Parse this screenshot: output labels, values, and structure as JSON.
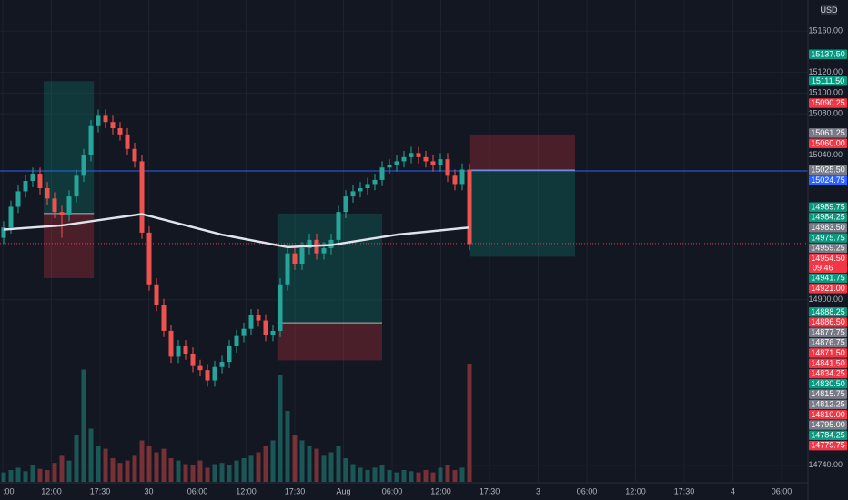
{
  "chart_data": {
    "type": "candlestick",
    "currency": "USD",
    "ylim": [
      14724,
      15190
    ],
    "yticks": [
      {
        "value": 15160,
        "label": "15160.00"
      },
      {
        "value": 15120,
        "label": "15120.00"
      },
      {
        "value": 15100,
        "label": "15100.00"
      },
      {
        "value": 15080,
        "label": "15080.00"
      },
      {
        "value": 15040,
        "label": "15040.00"
      },
      {
        "value": 14900,
        "label": "14900.00"
      },
      {
        "value": 14740,
        "label": "14740.00"
      }
    ],
    "time_labels": [
      ":00",
      "12:00",
      "17:30",
      "30",
      "06:00",
      "12:00",
      "17:30",
      "Aug",
      "06:00",
      "12:00",
      "17:30",
      "3",
      "06:00",
      "12:00",
      "17:30",
      "4",
      "06:00"
    ],
    "up_color": "#26a69a",
    "down_color": "#ef5350",
    "ohlc": [
      [
        14960,
        14976,
        14954,
        14970
      ],
      [
        14970,
        14996,
        14964,
        14990
      ],
      [
        14990,
        15011,
        14984,
        15005
      ],
      [
        15005,
        15021,
        14999,
        15015
      ],
      [
        15015,
        15028,
        15009,
        15022
      ],
      [
        15022,
        15028,
        15002,
        15008
      ],
      [
        15008,
        15014,
        14992,
        14998
      ],
      [
        14998,
        15004,
        14979,
        14985
      ],
      [
        14985,
        14991,
        14960,
        14982
      ],
      [
        14982,
        15006,
        14976,
        15000
      ],
      [
        15000,
        15026,
        14994,
        15020
      ],
      [
        15020,
        15046,
        15014,
        15040
      ],
      [
        15040,
        15074,
        15034,
        15068
      ],
      [
        15068,
        15084,
        15062,
        15078
      ],
      [
        15078,
        15084,
        15066,
        15072
      ],
      [
        15072,
        15078,
        15060,
        15066
      ],
      [
        15066,
        15072,
        15054,
        15060
      ],
      [
        15060,
        15066,
        15040,
        15046
      ],
      [
        15046,
        15052,
        15028,
        15034
      ],
      [
        15034,
        15040,
        14959,
        14965
      ],
      [
        14965,
        14971,
        14909,
        14915
      ],
      [
        14915,
        14921,
        14889,
        14895
      ],
      [
        14895,
        14901,
        14864,
        14870
      ],
      [
        14870,
        14876,
        14839,
        14845
      ],
      [
        14845,
        14861,
        14839,
        14855
      ],
      [
        14855,
        14861,
        14842,
        14848
      ],
      [
        14848,
        14854,
        14830,
        14836
      ],
      [
        14836,
        14842,
        14826,
        14832
      ],
      [
        14832,
        14838,
        14816,
        14822
      ],
      [
        14822,
        14841,
        14816,
        14835
      ],
      [
        14835,
        14846,
        14829,
        14840
      ],
      [
        14840,
        14861,
        14834,
        14855
      ],
      [
        14855,
        14871,
        14849,
        14865
      ],
      [
        14865,
        14878,
        14859,
        14872
      ],
      [
        14872,
        14891,
        14866,
        14885
      ],
      [
        14885,
        14891,
        14874,
        14880
      ],
      [
        14880,
        14886,
        14860,
        14866
      ],
      [
        14866,
        14876,
        14860,
        14870
      ],
      [
        14870,
        14921,
        14864,
        14915
      ],
      [
        14915,
        14951,
        14909,
        14945
      ],
      [
        14945,
        14951,
        14929,
        14935
      ],
      [
        14935,
        14956,
        14929,
        14950
      ],
      [
        14950,
        14964,
        14944,
        14958
      ],
      [
        14958,
        14964,
        14939,
        14945
      ],
      [
        14945,
        14956,
        14939,
        14950
      ],
      [
        14950,
        14964,
        14944,
        14958
      ],
      [
        14958,
        14991,
        14952,
        14985
      ],
      [
        14985,
        15006,
        14979,
        15000
      ],
      [
        15000,
        15011,
        14994,
        15005
      ],
      [
        15005,
        15014,
        14999,
        15008
      ],
      [
        15008,
        15018,
        15002,
        15012
      ],
      [
        15012,
        15022,
        15006,
        15016
      ],
      [
        15016,
        15034,
        15010,
        15028
      ],
      [
        15028,
        15036,
        15022,
        15030
      ],
      [
        15030,
        15040,
        15024,
        15034
      ],
      [
        15034,
        15044,
        15028,
        15038
      ],
      [
        15038,
        15048,
        15032,
        15042
      ],
      [
        15042,
        15048,
        15032,
        15038
      ],
      [
        15038,
        15044,
        15028,
        15034
      ],
      [
        15034,
        15040,
        15024,
        15030
      ],
      [
        15030,
        15042,
        15024,
        15036
      ],
      [
        15036,
        15042,
        15014,
        15020
      ],
      [
        15020,
        15026,
        15006,
        15012
      ],
      [
        15012,
        15032,
        15006,
        15026
      ],
      [
        15026,
        15032,
        14948,
        14954
      ]
    ],
    "volume": [
      8,
      10,
      12,
      9,
      14,
      11,
      10,
      16,
      22,
      18,
      40,
      95,
      45,
      30,
      28,
      20,
      16,
      18,
      22,
      35,
      30,
      25,
      28,
      20,
      18,
      15,
      14,
      18,
      12,
      15,
      16,
      14,
      18,
      20,
      22,
      25,
      30,
      35,
      90,
      60,
      40,
      35,
      30,
      28,
      22,
      25,
      30,
      20,
      15,
      12,
      10,
      12,
      14,
      10,
      8,
      10,
      9,
      8,
      10,
      8,
      12,
      14,
      10,
      12,
      100
    ],
    "ma": {
      "x": [
        0,
        8,
        19,
        30,
        39,
        45,
        54,
        64
      ],
      "values": [
        14968,
        14972,
        14983,
        14963,
        14951,
        14953,
        14963,
        14970
      ],
      "color": "#e0e3eb"
    },
    "positions": [
      {
        "from": 5.5,
        "to": 12.4,
        "target": 15111.5,
        "entry": 14983.5,
        "stop": 14921
      },
      {
        "from": 37.6,
        "to": 52,
        "target": 14983.5,
        "entry": 14877.75,
        "stop": 14841.5
      },
      {
        "from": 64.1,
        "to": 78.5,
        "target": 14941.75,
        "entry": 15025.5,
        "stop": 15060
      }
    ],
    "hlines": [
      {
        "value": 15024.75,
        "color": "#2962ff",
        "dash": false
      },
      {
        "value": 14954.5,
        "color": "#f23645",
        "dash": true
      }
    ],
    "price_tags": [
      {
        "value": 15137.5,
        "label": "15137.50",
        "color": "#089981"
      },
      {
        "value": 15111.5,
        "label": "15111.50",
        "color": "#089981"
      },
      {
        "value": 15090.25,
        "label": "15090.25",
        "color": "#f23645"
      },
      {
        "value": 15061.25,
        "label": "15061.25",
        "color": "#787b86"
      },
      {
        "value": 15060,
        "label": "15060.00",
        "color": "#f23645"
      },
      {
        "value": 15025.5,
        "label": "15025.50",
        "color": "#787b86"
      },
      {
        "value": 15024.75,
        "label": "15024.75",
        "color": "#2962ff"
      },
      {
        "value": 14989.75,
        "label": "14989.75",
        "color": "#089981"
      },
      {
        "value": 14984.25,
        "label": "14984.25",
        "color": "#089981"
      },
      {
        "value": 14983.5,
        "label": "14983.50",
        "color": "#787b86"
      },
      {
        "value": 14975.75,
        "label": "14975.75",
        "color": "#089981"
      },
      {
        "value": 14959.25,
        "label": "14959.25",
        "color": "#787b86"
      },
      {
        "value": 14954.5,
        "label": "14954.50",
        "color": "#f23645",
        "countdown": "09:46"
      },
      {
        "value": 14941.75,
        "label": "14941.75",
        "color": "#089981"
      },
      {
        "value": 14921,
        "label": "14921.00",
        "color": "#f23645"
      },
      {
        "value": 14888.25,
        "label": "14888.25",
        "color": "#089981"
      },
      {
        "value": 14886.5,
        "label": "14886.50",
        "color": "#f23645"
      },
      {
        "value": 14877.75,
        "label": "14877.75",
        "color": "#787b86"
      },
      {
        "value": 14876.75,
        "label": "14876.75",
        "color": "#787b86"
      },
      {
        "value": 14871.5,
        "label": "14871.50",
        "color": "#f23645"
      },
      {
        "value": 14841.5,
        "label": "14841.50",
        "color": "#f23645"
      },
      {
        "value": 14834.25,
        "label": "14834.25",
        "color": "#f23645"
      },
      {
        "value": 14830.5,
        "label": "14830.50",
        "color": "#089981"
      },
      {
        "value": 14815.75,
        "label": "14815.75",
        "color": "#787b86"
      },
      {
        "value": 14812.25,
        "label": "14812.25",
        "color": "#787b86"
      },
      {
        "value": 14810,
        "label": "14810.00",
        "color": "#f23645"
      },
      {
        "value": 14795,
        "label": "14795.00",
        "color": "#787b86"
      },
      {
        "value": 14784.25,
        "label": "14784.25",
        "color": "#089981"
      },
      {
        "value": 14779.75,
        "label": "14779.75",
        "color": "#f23645"
      }
    ]
  }
}
